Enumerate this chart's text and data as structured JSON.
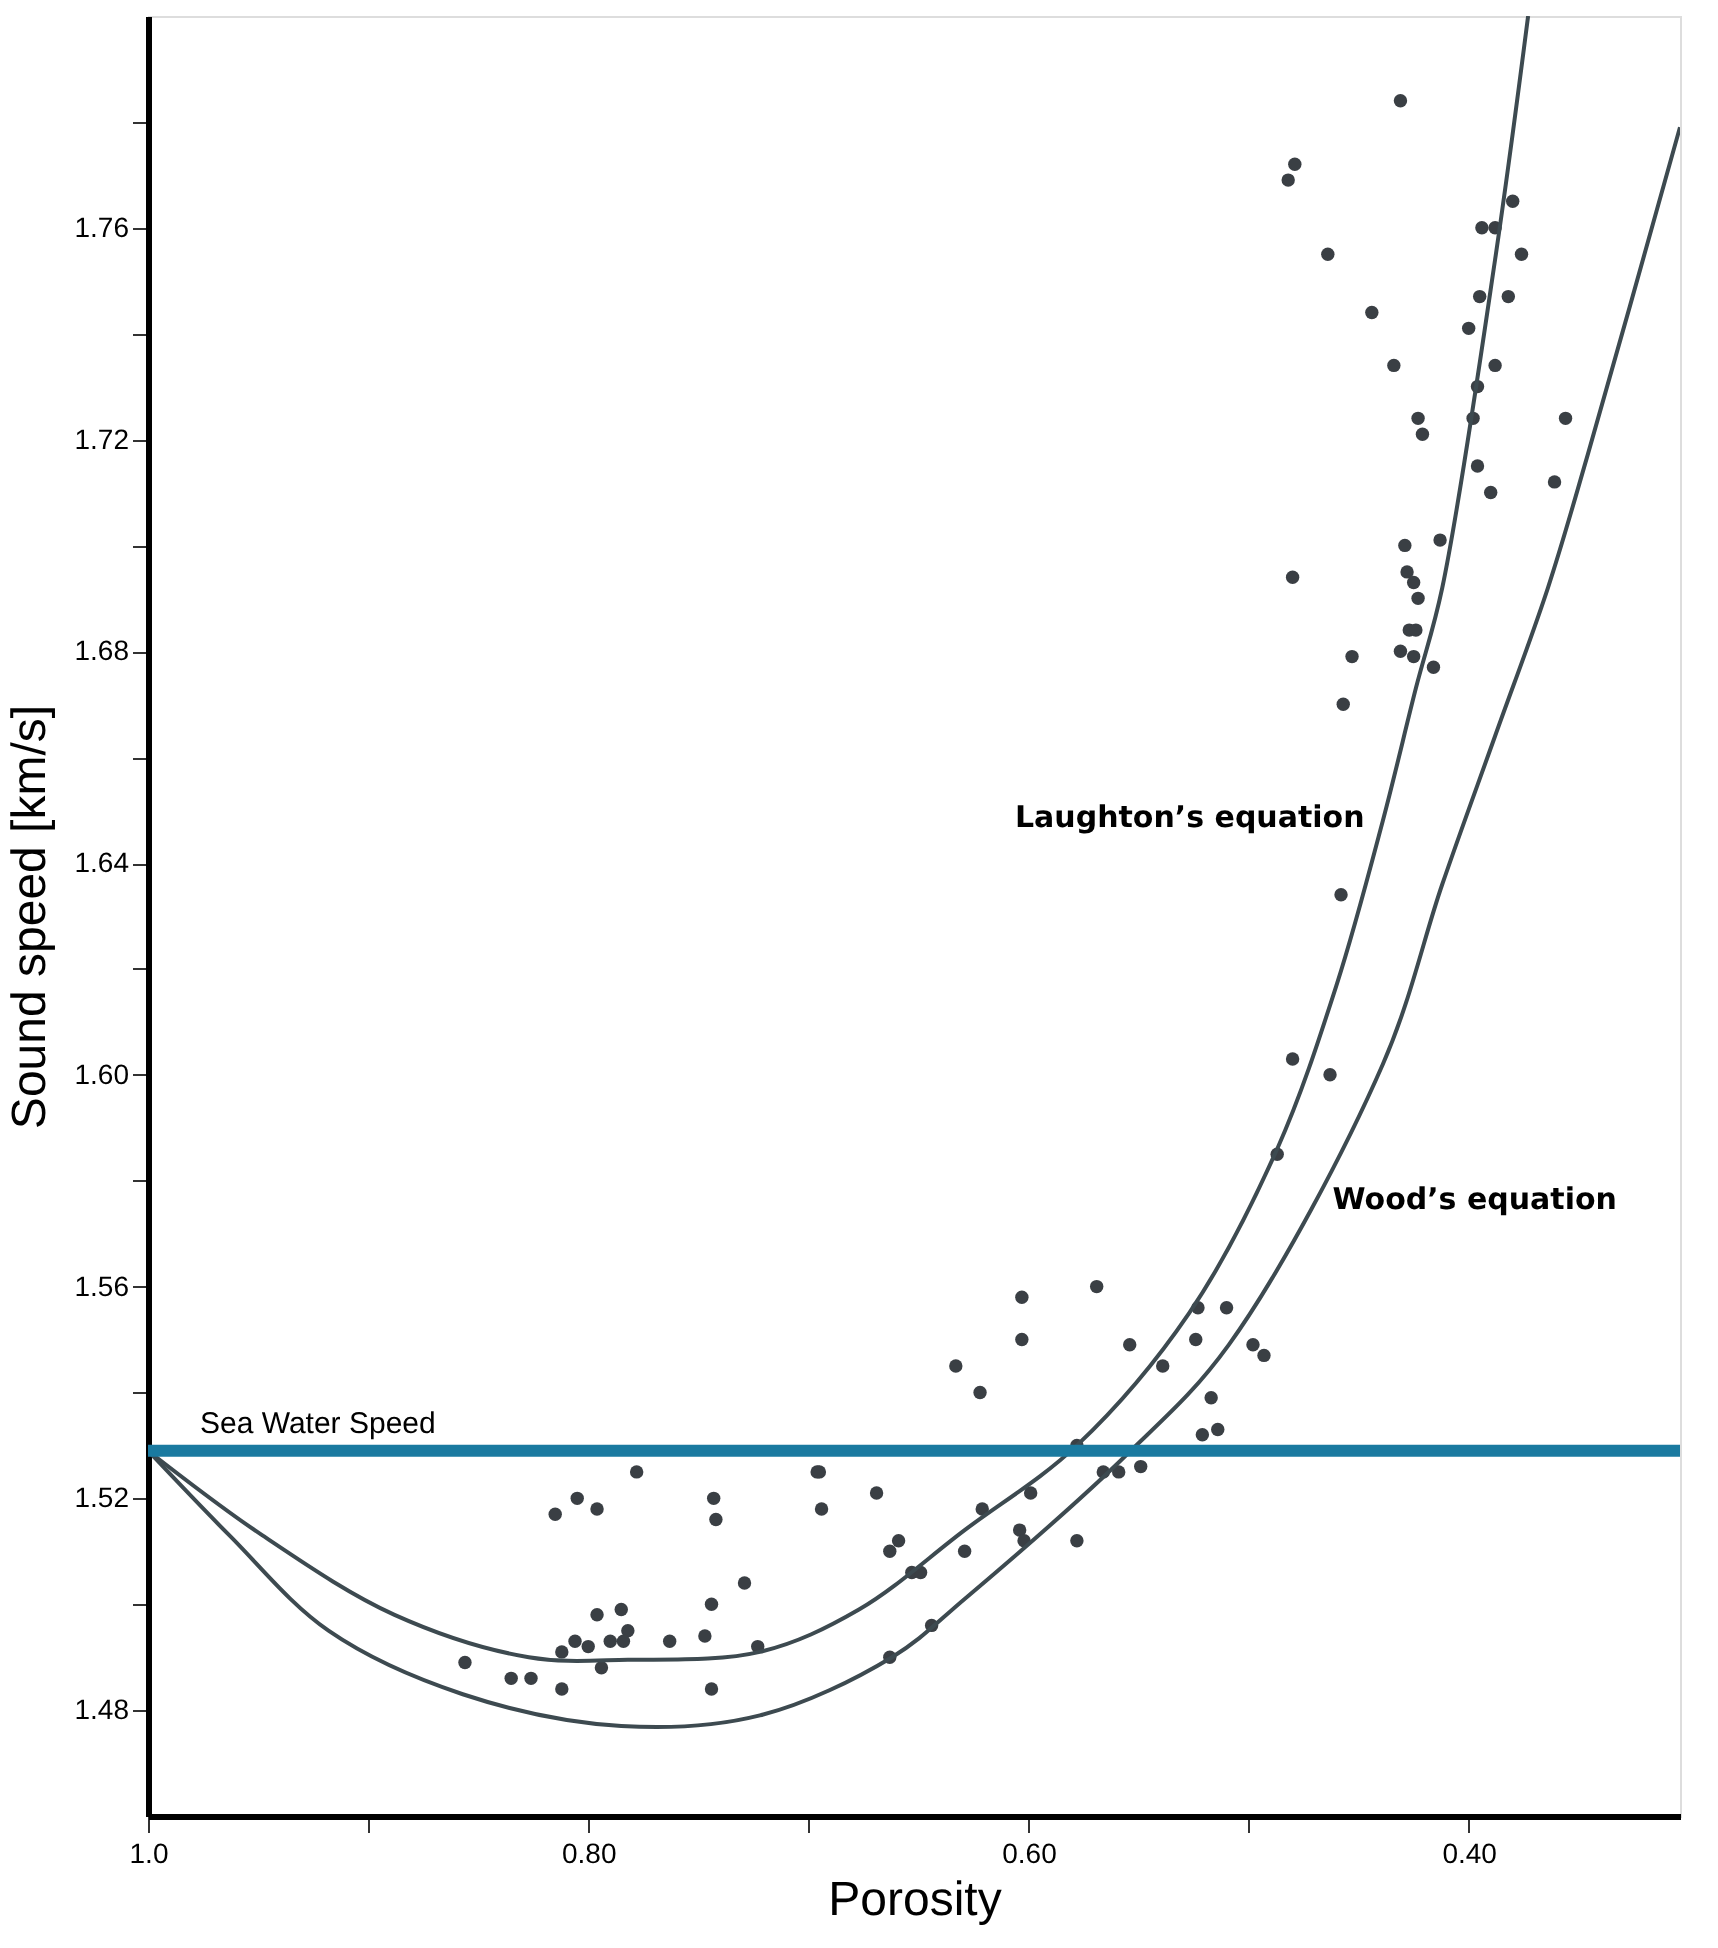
{
  "chart_data": {
    "type": "scatter",
    "xlabel": "Porosity",
    "ylabel": "Sound speed [km/s]",
    "xlim": [
      1.0,
      0.304
    ],
    "ylim": [
      1.46,
      1.8
    ],
    "xticks": [
      {
        "value": 1.0,
        "label": "1.0"
      },
      {
        "value": 0.9,
        "label": null
      },
      {
        "value": 0.8,
        "label": "0.80"
      },
      {
        "value": 0.7,
        "label": null
      },
      {
        "value": 0.6,
        "label": "0.60"
      },
      {
        "value": 0.5,
        "label": null
      },
      {
        "value": 0.4,
        "label": "0.40"
      }
    ],
    "yticks": [
      {
        "value": 1.48,
        "label": "1.48"
      },
      {
        "value": 1.5,
        "label": null
      },
      {
        "value": 1.52,
        "label": "1.52"
      },
      {
        "value": 1.54,
        "label": null
      },
      {
        "value": 1.56,
        "label": "1.56"
      },
      {
        "value": 1.58,
        "label": null
      },
      {
        "value": 1.6,
        "label": "1.60"
      },
      {
        "value": 1.62,
        "label": null
      },
      {
        "value": 1.64,
        "label": "1.64"
      },
      {
        "value": 1.66,
        "label": null
      },
      {
        "value": 1.68,
        "label": "1.68"
      },
      {
        "value": 1.7,
        "label": null
      },
      {
        "value": 1.72,
        "label": "1.72"
      },
      {
        "value": 1.74,
        "label": null
      },
      {
        "value": 1.76,
        "label": "1.76"
      },
      {
        "value": 1.78,
        "label": null
      }
    ],
    "grid": false,
    "marker": "circle",
    "series": [
      {
        "color": "#3a3f44",
        "x": [
          0.431,
          0.479,
          0.482,
          0.38,
          0.394,
          0.388,
          0.464,
          0.376,
          0.395,
          0.382,
          0.444,
          0.4,
          0.434,
          0.388,
          0.396,
          0.423,
          0.421,
          0.398,
          0.356,
          0.396,
          0.361,
          0.39,
          0.413,
          0.429,
          0.48,
          0.428,
          0.425,
          0.423,
          0.427,
          0.424,
          0.453,
          0.431,
          0.425,
          0.416,
          0.457,
          0.458,
          0.48,
          0.463,
          0.487,
          0.603,
          0.569,
          0.603,
          0.554,
          0.523,
          0.51,
          0.524,
          0.498,
          0.493,
          0.539,
          0.633,
          0.622,
          0.517,
          0.514,
          0.521,
          0.578,
          0.566,
          0.559,
          0.549,
          0.695,
          0.694,
          0.669,
          0.621,
          0.599,
          0.604,
          0.602,
          0.578,
          0.659,
          0.663,
          0.629,
          0.653,
          0.649,
          0.729,
          0.723,
          0.644,
          0.663,
          0.778,
          0.815,
          0.805,
          0.796,
          0.743,
          0.742,
          0.696,
          0.744,
          0.796,
          0.785,
          0.782,
          0.806,
          0.8,
          0.812,
          0.79,
          0.784,
          0.794,
          0.763,
          0.747,
          0.856,
          0.835,
          0.826,
          0.812,
          0.744
        ],
        "values": [
          1.784,
          1.772,
          1.769,
          1.765,
          1.76,
          1.76,
          1.755,
          1.755,
          1.747,
          1.747,
          1.744,
          1.741,
          1.734,
          1.734,
          1.73,
          1.724,
          1.721,
          1.724,
          1.724,
          1.715,
          1.712,
          1.71,
          1.701,
          1.7,
          1.694,
          1.695,
          1.693,
          1.69,
          1.684,
          1.684,
          1.679,
          1.68,
          1.679,
          1.677,
          1.67,
          1.634,
          1.603,
          1.6,
          1.585,
          1.558,
          1.56,
          1.55,
          1.549,
          1.556,
          1.556,
          1.55,
          1.549,
          1.547,
          1.545,
          1.545,
          1.54,
          1.539,
          1.533,
          1.532,
          1.53,
          1.525,
          1.525,
          1.526,
          1.525,
          1.518,
          1.521,
          1.518,
          1.521,
          1.514,
          1.512,
          1.512,
          1.512,
          1.51,
          1.51,
          1.506,
          1.506,
          1.504,
          1.492,
          1.496,
          1.49,
          1.525,
          1.517,
          1.52,
          1.518,
          1.52,
          1.516,
          1.525,
          1.5,
          1.498,
          1.499,
          1.495,
          1.493,
          1.492,
          1.491,
          1.493,
          1.493,
          1.488,
          1.493,
          1.494,
          1.489,
          1.486,
          1.486,
          1.484,
          1.484
        ]
      },
      {
        "type": "line",
        "marker": "none",
        "color": "#3d4a50",
        "x": [
          1.0,
          0.948,
          0.888,
          0.827,
          0.782,
          0.722,
          0.677,
          0.629,
          0.578,
          0.527,
          0.487,
          0.46,
          0.439,
          0.424,
          0.412,
          0.388,
          0.373
        ],
        "values": [
          1.529,
          1.513,
          1.498,
          1.49,
          1.4895,
          1.491,
          1.499,
          1.514,
          1.53,
          1.555,
          1.586,
          1.617,
          1.648,
          1.673,
          1.692,
          1.754,
          1.8
        ]
      },
      {
        "type": "line",
        "marker": "none",
        "color": "#3d4a50",
        "x": [
          1.0,
          0.963,
          0.918,
          0.857,
          0.785,
          0.722,
          0.662,
          0.629,
          0.556,
          0.509,
          0.439,
          0.412,
          0.388,
          0.364,
          0.346,
          0.304
        ],
        "values": [
          1.529,
          1.513,
          1.495,
          1.483,
          1.477,
          1.479,
          1.49,
          1.501,
          1.528,
          1.549,
          1.602,
          1.636,
          1.664,
          1.692,
          1.717,
          1.779
        ]
      }
    ],
    "ref_lines": [
      {
        "axis": "y",
        "value": 1.529,
        "label": "Sea Water Speed",
        "color": "#1a7aa0"
      }
    ],
    "annotations": [
      "Laughton’s equation",
      "Wood’s equation"
    ]
  }
}
